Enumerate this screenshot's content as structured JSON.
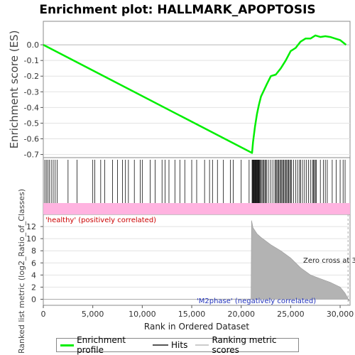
{
  "chart_data": {
    "type": "line",
    "title": "Enrichment plot: HALLMARK_APOPTOSIS",
    "xlabel": "Rank in Ordered Dataset",
    "ylabel_es": "Enrichment score (ES)",
    "ylabel_metric": "Ranked list metric (log2_Ratio_of_Classes)",
    "xlim": [
      0,
      31000
    ],
    "es_ylim": [
      -0.72,
      0.15
    ],
    "es_yticks": [
      0.0,
      -0.1,
      -0.2,
      -0.3,
      -0.4,
      -0.5,
      -0.6,
      -0.7
    ],
    "metric_ylim": [
      -1,
      14
    ],
    "metric_yticks": [
      0,
      2,
      4,
      6,
      8,
      10,
      12
    ],
    "xticks": [
      0,
      5000,
      10000,
      15000,
      20000,
      25000,
      30000
    ],
    "es_curve": [
      [
        0,
        0.0
      ],
      [
        21100,
        -0.69
      ],
      [
        21200,
        -0.62
      ],
      [
        21400,
        -0.52
      ],
      [
        21600,
        -0.44
      ],
      [
        21800,
        -0.38
      ],
      [
        22000,
        -0.33
      ],
      [
        22300,
        -0.29
      ],
      [
        22600,
        -0.25
      ],
      [
        23000,
        -0.2
      ],
      [
        23500,
        -0.19
      ],
      [
        24000,
        -0.15
      ],
      [
        24500,
        -0.1
      ],
      [
        25000,
        -0.04
      ],
      [
        25500,
        -0.02
      ],
      [
        26000,
        0.02
      ],
      [
        26500,
        0.04
      ],
      [
        27000,
        0.04
      ],
      [
        27500,
        0.06
      ],
      [
        28000,
        0.05
      ],
      [
        28500,
        0.055
      ],
      [
        29000,
        0.05
      ],
      [
        29500,
        0.04
      ],
      [
        30000,
        0.03
      ],
      [
        30600,
        0.0
      ]
    ],
    "hits": [
      150,
      300,
      450,
      600,
      800,
      1000,
      1200,
      1400,
      2500,
      3400,
      5000,
      5200,
      5800,
      6200,
      7000,
      7500,
      8000,
      8300,
      8600,
      9200,
      9800,
      10000,
      10800,
      11300,
      12000,
      12300,
      12700,
      13300,
      13800,
      14300,
      15000,
      15500,
      16300,
      16800,
      17100,
      17600,
      18200,
      18900,
      19200,
      20000,
      20800,
      21100,
      21150,
      21200,
      21250,
      21300,
      21350,
      21400,
      21450,
      21500,
      21550,
      21600,
      21650,
      21700,
      21750,
      21800,
      21850,
      21900,
      22000,
      22100,
      22200,
      22300,
      22400,
      22500,
      22600,
      22800,
      23000,
      23200,
      23400,
      23500,
      23600,
      23700,
      23800,
      23900,
      24000,
      24100,
      24200,
      24300,
      24400,
      24500,
      24600,
      24700,
      24800,
      24900,
      25000,
      25100,
      25300,
      25500,
      25700,
      25900,
      26000,
      26200,
      26400,
      26600,
      26800,
      27000,
      27200,
      27300,
      27400,
      27500,
      27600,
      28000,
      28300,
      28500,
      28700,
      29200,
      29600,
      30000,
      30300,
      30500
    ],
    "metric_profile": [
      [
        0,
        0.02
      ],
      [
        15000,
        0.02
      ],
      [
        20000,
        0.03
      ],
      [
        21000,
        0.04
      ],
      [
        21050,
        13.0
      ],
      [
        21200,
        11.8
      ],
      [
        21600,
        10.8
      ],
      [
        22000,
        10.2
      ],
      [
        23000,
        9.0
      ],
      [
        24000,
        8.0
      ],
      [
        25000,
        6.8
      ],
      [
        26000,
        5.2
      ],
      [
        27000,
        4.0
      ],
      [
        28000,
        3.4
      ],
      [
        29000,
        2.8
      ],
      [
        30000,
        2.0
      ],
      [
        30500,
        1.0
      ],
      [
        30800,
        0.1
      ],
      [
        30900,
        -0.3
      ]
    ],
    "annotations": {
      "positive": "'healthy' (positively correlated)",
      "negative": "'M2phase' (negatively correlated)",
      "zero_cross": "Zero cross at 3"
    }
  },
  "legend": {
    "items": [
      {
        "label": "Enrichment profile",
        "color": "#00ee00"
      },
      {
        "label": "Hits",
        "color": "#000000"
      },
      {
        "label": "Ranking metric scores",
        "color": "#cccccc"
      }
    ]
  }
}
